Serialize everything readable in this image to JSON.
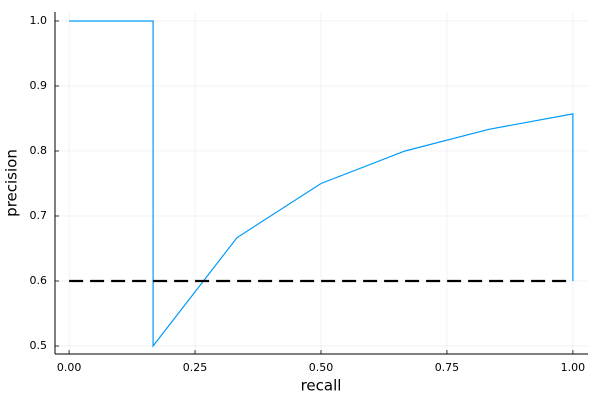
{
  "chart_data": {
    "type": "line",
    "x_label": "recall",
    "y_label": "precision",
    "xlim": [
      -0.028,
      1.03
    ],
    "ylim": [
      0.4877,
      1.0138
    ],
    "xticks": [
      {
        "value": 0,
        "label": "0.00"
      },
      {
        "value": 0.25,
        "label": "0.25"
      },
      {
        "value": 0.5,
        "label": "0.50"
      },
      {
        "value": 0.75,
        "label": "0.75"
      },
      {
        "value": 1,
        "label": "1.00"
      }
    ],
    "yticks": [
      0.5,
      0.6,
      0.7,
      0.8,
      0.9,
      {
        "value": 1,
        "label": "1.0"
      }
    ],
    "grid": true,
    "series": [
      {
        "color": "#009af9",
        "dashed": false,
        "x": [
          0,
          0.1667,
          0.1667,
          0.3333,
          0.5,
          0.6667,
          0.8333,
          1.0,
          1.0
        ],
        "values": [
          1.0,
          1.0,
          0.5,
          0.6667,
          0.75,
          0.8,
          0.8333,
          0.8571,
          0.6
        ]
      },
      {
        "color": "#000000",
        "dashed": true,
        "x": [
          0,
          1.0
        ],
        "values": [
          0.6,
          0.6
        ]
      }
    ]
  }
}
